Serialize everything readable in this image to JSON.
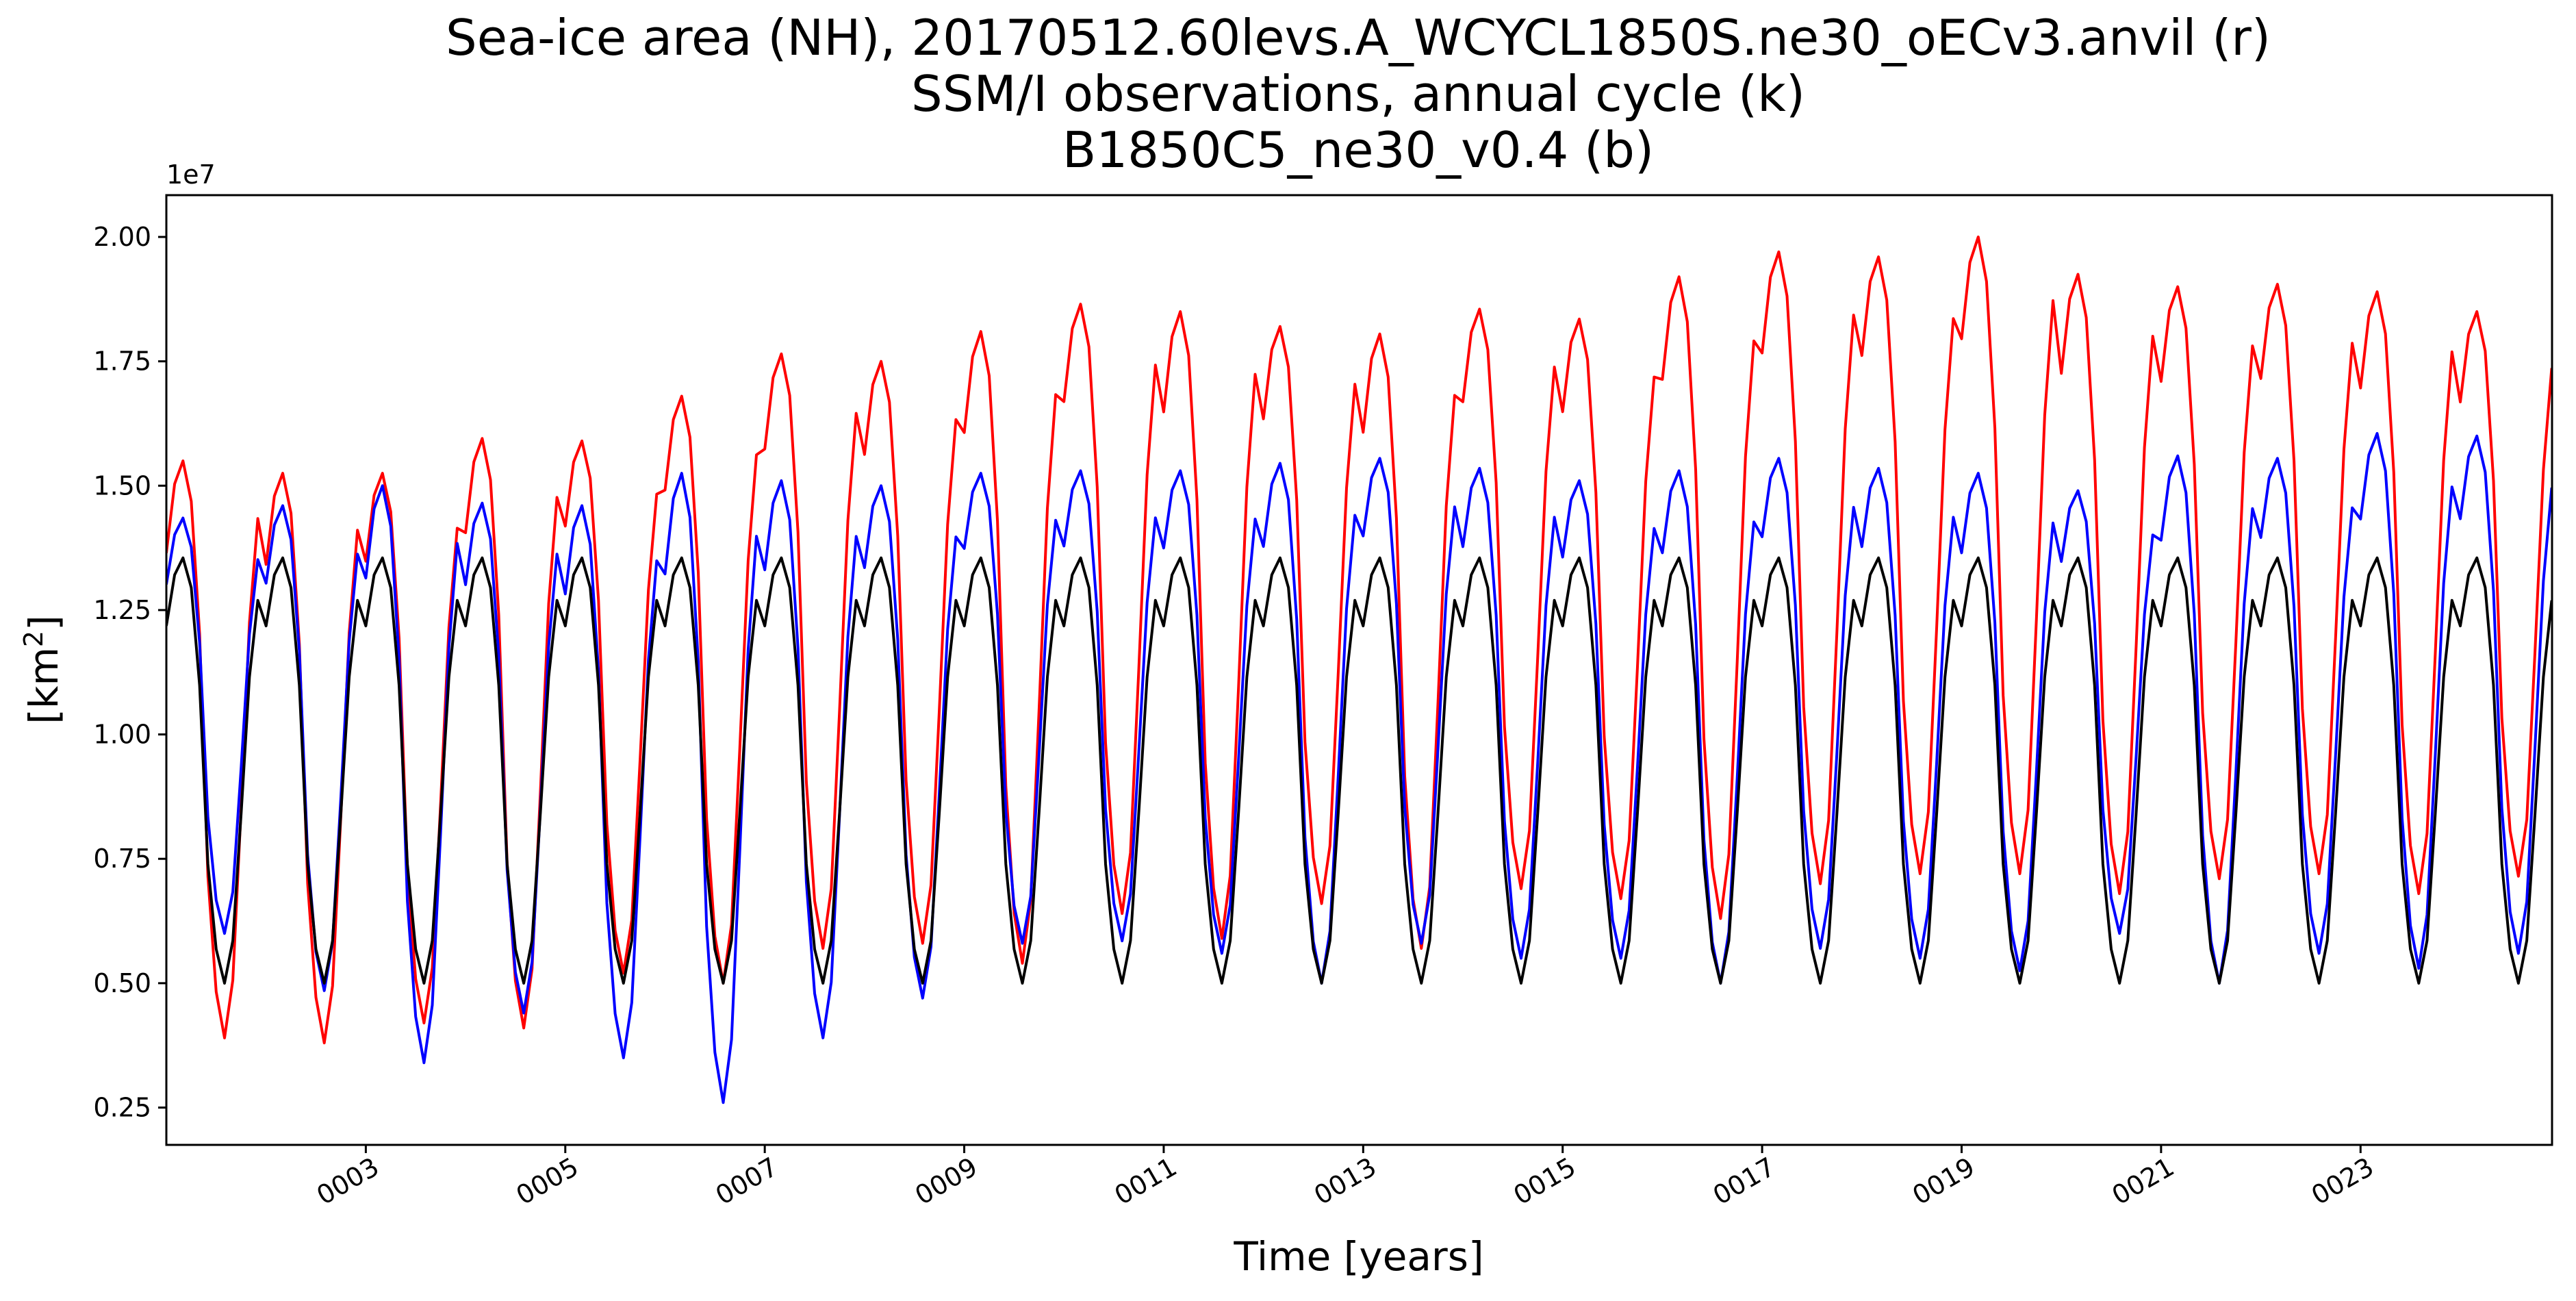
{
  "chart_data": {
    "type": "line",
    "title_lines": [
      "Sea-ice area (NH), 20170512.60levs.A_WCYCL1850S.ne30_oECv3.anvil (r)",
      "SSM/I observations, annual cycle (k)",
      "B1850C5_ne30_v0.4 (b)"
    ],
    "xlabel": "Time [years]",
    "ylabel_base": "[km",
    "ylabel_sup": "2",
    "ylabel_end": "]",
    "y_offset_text": "1e7",
    "xlim": [
      1.0,
      24.92
    ],
    "ylim": [
      1750000,
      20840000
    ],
    "grid": false,
    "legend": "none",
    "x_ticks": [
      3,
      5,
      7,
      9,
      11,
      13,
      15,
      17,
      19,
      21,
      23
    ],
    "x_tick_labels": [
      "0003",
      "0005",
      "0007",
      "0009",
      "0011",
      "0013",
      "0015",
      "0017",
      "0019",
      "0021",
      "0023"
    ],
    "y_ticks": [
      2500000,
      5000000,
      7500000,
      10000000,
      12500000,
      15000000,
      17500000,
      20000000
    ],
    "y_tick_labels": [
      "0.25",
      "0.50",
      "0.75",
      "1.00",
      "1.25",
      "1.50",
      "1.75",
      "2.00"
    ],
    "monthly_shape": [
      0.84,
      0.96,
      1.0,
      0.93,
      0.7,
      0.28,
      0.08,
      0.0,
      0.1,
      0.4,
      0.72,
      0.9
    ],
    "series": [
      {
        "color": "#ff0000",
        "yearly_max": [
          15500000,
          15250000,
          15250000,
          15950000,
          15900000,
          16800000,
          17650000,
          17500000,
          18100000,
          18650000,
          18500000,
          18200000,
          18050000,
          18550000,
          18350000,
          19200000,
          19700000,
          19600000,
          20000000,
          19250000,
          19000000,
          19050000,
          18900000,
          18500000
        ],
        "yearly_min": [
          3900000,
          3800000,
          4200000,
          4100000,
          5200000,
          5000000,
          5700000,
          5800000,
          5400000,
          6400000,
          5900000,
          6600000,
          5700000,
          6900000,
          6700000,
          6300000,
          7000000,
          7200000,
          7200000,
          6800000,
          7100000,
          7200000,
          6800000,
          7150000
        ]
      },
      {
        "color": "#0000ff",
        "yearly_max": [
          14350000,
          14600000,
          15000000,
          14650000,
          14600000,
          15250000,
          15100000,
          15000000,
          15250000,
          15300000,
          15300000,
          15450000,
          15550000,
          15350000,
          15100000,
          15300000,
          15550000,
          15350000,
          15250000,
          14900000,
          15600000,
          15550000,
          16050000,
          16000000
        ],
        "yearly_min": [
          6000000,
          4850000,
          3400000,
          4400000,
          3500000,
          2600000,
          3900000,
          4700000,
          5800000,
          5850000,
          5600000,
          5000000,
          5800000,
          5500000,
          5500000,
          5000000,
          5700000,
          5500000,
          5250000,
          6000000,
          5000000,
          5600000,
          5300000,
          5600000
        ]
      },
      {
        "color": "#000000",
        "yearly_max": [
          13550000,
          13550000,
          13550000,
          13550000,
          13550000,
          13550000,
          13550000,
          13550000,
          13550000,
          13550000,
          13550000,
          13550000,
          13550000,
          13550000,
          13550000,
          13550000,
          13550000,
          13550000,
          13550000,
          13550000,
          13550000,
          13550000,
          13550000,
          13550000
        ],
        "yearly_min": [
          5000000,
          5000000,
          5000000,
          5000000,
          5000000,
          5000000,
          5000000,
          5000000,
          5000000,
          5000000,
          5000000,
          5000000,
          5000000,
          5000000,
          5000000,
          5000000,
          5000000,
          5000000,
          5000000,
          5000000,
          5000000,
          5000000,
          5000000,
          5000000
        ]
      }
    ]
  }
}
